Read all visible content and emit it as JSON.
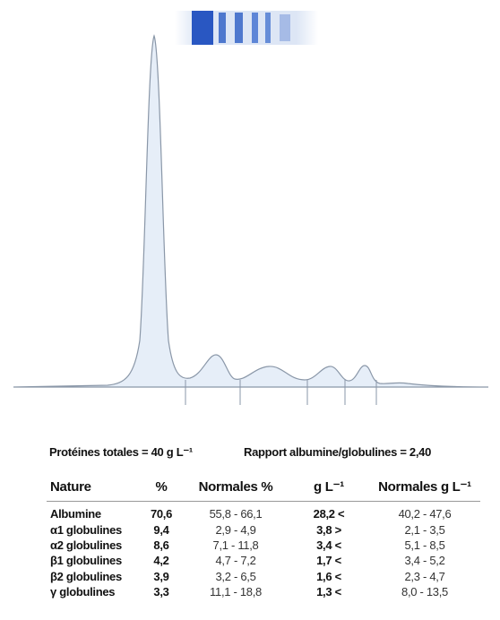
{
  "summary": {
    "total": "Protéines totales = 40 g L⁻¹",
    "ratio": "Rapport albumine/globulines = 2,40"
  },
  "table": {
    "header": [
      "Nature",
      "%",
      "Normales %",
      "g L⁻¹",
      "Normales g L⁻¹"
    ],
    "rows": [
      [
        "Albumine",
        "70,6",
        "55,8 - 66,1",
        "28,2 <",
        "40,2 - 47,6"
      ],
      [
        "α1 globulines",
        "9,4",
        "2,9 - 4,9",
        "3,8 >",
        "2,1 - 3,5"
      ],
      [
        "α2 globulines",
        "8,6",
        "7,1 - 11,8",
        "3,4 <",
        "5,1 - 8,5"
      ],
      [
        "β1 globulines",
        "4,2",
        "4,7 - 7,2",
        "1,7 <",
        "3,4 - 5,2"
      ],
      [
        "β2 globulines",
        "3,9",
        "3,2 - 6,5",
        "1,6 <",
        "2,3 - 4,7"
      ],
      [
        "γ globulines",
        "3,3",
        "11,1 - 18,8",
        "1,3 <",
        "8,0 - 13,5"
      ]
    ]
  }
}
